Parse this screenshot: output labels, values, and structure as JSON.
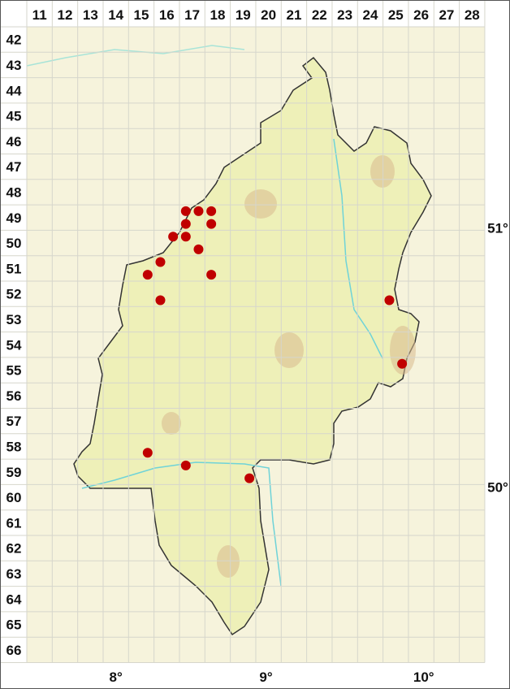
{
  "map": {
    "columns": [
      "11",
      "12",
      "13",
      "14",
      "15",
      "16",
      "17",
      "18",
      "19",
      "20",
      "21",
      "22",
      "23",
      "24",
      "25",
      "26",
      "27",
      "28"
    ],
    "rows": [
      "42",
      "43",
      "44",
      "45",
      "46",
      "47",
      "48",
      "49",
      "50",
      "51",
      "52",
      "53",
      "54",
      "55",
      "56",
      "57",
      "58",
      "59",
      "60",
      "61",
      "62",
      "63",
      "64",
      "65",
      "66"
    ],
    "longitude_labels": [
      {
        "text": "8°",
        "col": 14.5
      },
      {
        "text": "9°",
        "col": 20.4
      },
      {
        "text": "10°",
        "col": 26.6
      }
    ],
    "latitude_labels": [
      {
        "text": "51°",
        "row": 49.9
      },
      {
        "text": "50°",
        "row": 60.1
      }
    ],
    "colors": {
      "background": "#f6f3dc",
      "region": "#eef0b8",
      "relief": "#d9c39a",
      "grid": "#d8d8c8",
      "border": "#333333",
      "river": "#6fd3d8",
      "dot": "#c00000"
    },
    "occurrences": [
      {
        "col": 16.75,
        "row": 48.75
      },
      {
        "col": 17.25,
        "row": 48.75
      },
      {
        "col": 17.75,
        "row": 48.75
      },
      {
        "col": 16.75,
        "row": 49.25
      },
      {
        "col": 17.75,
        "row": 49.25
      },
      {
        "col": 16.25,
        "row": 49.75
      },
      {
        "col": 16.75,
        "row": 49.75
      },
      {
        "col": 17.25,
        "row": 50.25
      },
      {
        "col": 15.75,
        "row": 50.75
      },
      {
        "col": 15.25,
        "row": 51.25
      },
      {
        "col": 17.75,
        "row": 51.25
      },
      {
        "col": 15.75,
        "row": 52.25
      },
      {
        "col": 24.75,
        "row": 52.25
      },
      {
        "col": 25.25,
        "row": 54.75
      },
      {
        "col": 15.25,
        "row": 58.25
      },
      {
        "col": 16.75,
        "row": 58.75
      },
      {
        "col": 19.25,
        "row": 59.25
      }
    ]
  }
}
